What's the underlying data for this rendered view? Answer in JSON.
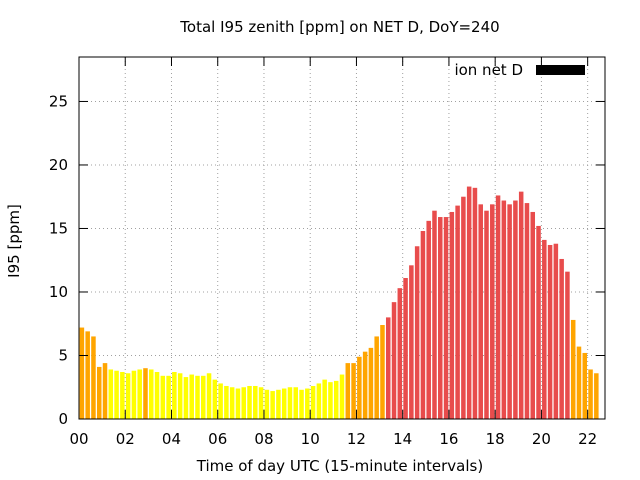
{
  "chart_data": {
    "type": "bar",
    "title": "Total I95 zenith [ppm] on NET D, DoY=240",
    "xlabel": "Time of day UTC (15-minute intervals)",
    "ylabel": "I95 [ppm]",
    "ylim": [
      0,
      28.5
    ],
    "xlim": [
      0,
      22.75
    ],
    "x_ticks": [
      "00",
      "02",
      "04",
      "06",
      "08",
      "10",
      "12",
      "14",
      "16",
      "18",
      "20",
      "22"
    ],
    "y_ticks": [
      "0",
      "5",
      "10",
      "15",
      "20",
      "25"
    ],
    "grid": true,
    "legend": {
      "position": "top-right",
      "label": "ion net D",
      "color": "#000000"
    },
    "colors": {
      "low": "#ffff00",
      "mid": "#ffa500",
      "high": "#e84c4c"
    },
    "values": [
      7.2,
      6.9,
      6.5,
      4.1,
      4.4,
      3.9,
      3.8,
      3.7,
      3.6,
      3.8,
      3.9,
      4.0,
      3.9,
      3.7,
      3.4,
      3.4,
      3.7,
      3.6,
      3.3,
      3.5,
      3.4,
      3.4,
      3.6,
      3.1,
      2.8,
      2.6,
      2.5,
      2.4,
      2.5,
      2.6,
      2.6,
      2.5,
      2.3,
      2.2,
      2.3,
      2.4,
      2.5,
      2.5,
      2.3,
      2.4,
      2.6,
      2.8,
      3.1,
      2.9,
      3.0,
      3.5,
      4.4,
      4.4,
      4.9,
      5.3,
      5.6,
      6.5,
      7.4,
      8.0,
      9.2,
      10.3,
      11.1,
      12.1,
      13.6,
      14.8,
      15.6,
      16.4,
      15.9,
      15.9,
      16.3,
      16.8,
      17.5,
      18.3,
      18.2,
      16.9,
      16.4,
      16.9,
      17.6,
      17.2,
      16.9,
      17.2,
      17.9,
      17.0,
      16.3,
      15.2,
      14.1,
      13.7,
      13.8,
      12.6,
      11.6,
      7.8,
      5.7,
      5.2,
      3.9,
      3.6
    ],
    "bar_colors": [
      "mid",
      "mid",
      "mid",
      "mid",
      "mid",
      "low",
      "low",
      "low",
      "low",
      "low",
      "low",
      "mid",
      "low",
      "low",
      "low",
      "low",
      "low",
      "low",
      "low",
      "low",
      "low",
      "low",
      "low",
      "low",
      "low",
      "low",
      "low",
      "low",
      "low",
      "low",
      "low",
      "low",
      "low",
      "low",
      "low",
      "low",
      "low",
      "low",
      "low",
      "low",
      "low",
      "low",
      "low",
      "low",
      "low",
      "low",
      "mid",
      "mid",
      "mid",
      "mid",
      "mid",
      "mid",
      "mid",
      "high",
      "high",
      "high",
      "high",
      "high",
      "high",
      "high",
      "high",
      "high",
      "high",
      "high",
      "high",
      "high",
      "high",
      "high",
      "high",
      "high",
      "high",
      "high",
      "high",
      "high",
      "high",
      "high",
      "high",
      "high",
      "high",
      "high",
      "high",
      "high",
      "high",
      "high",
      "high",
      "mid",
      "mid",
      "mid",
      "mid",
      "mid"
    ]
  }
}
